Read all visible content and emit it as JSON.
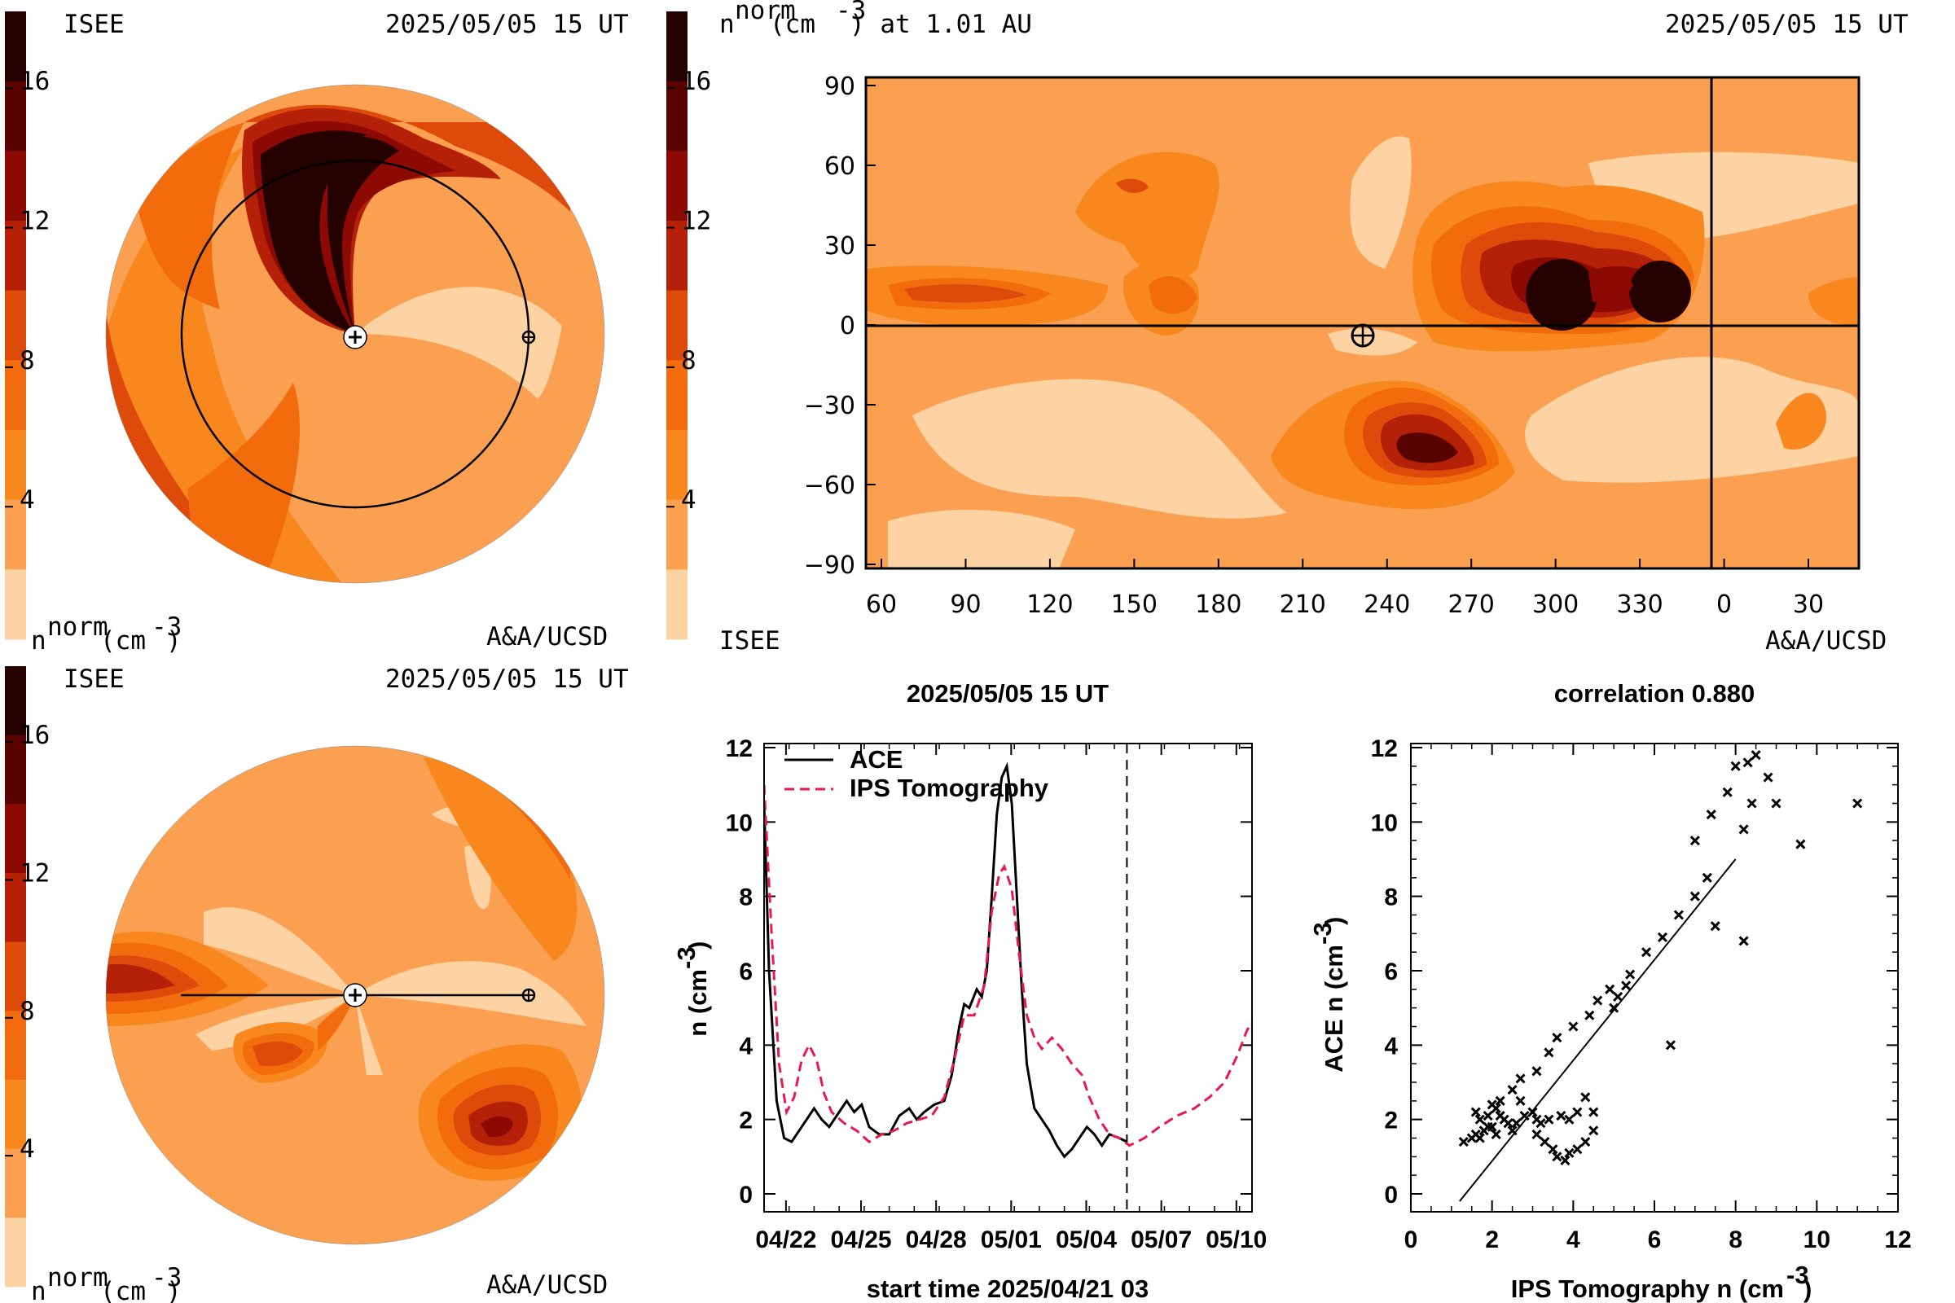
{
  "colors": {
    "c0": "#fdd3a3",
    "c1": "#fba050",
    "c2": "#f8871e",
    "c3": "#f26c0e",
    "c4": "#de4a0a",
    "c5": "#b42008",
    "c6": "#8d0a04",
    "c7": "#5a0402",
    "c8": "#250100",
    "ips": "#e8194f",
    "ace": "#000000"
  },
  "colorbar": {
    "ticks": [
      "16",
      "12",
      "8",
      "4"
    ],
    "title": "n",
    "title_sup": "norm",
    "title_unit": "(cm",
    "title_unit_sup": "-3",
    "title_unit_end": ")"
  },
  "top_left": {
    "source": "ISEE",
    "time": "2025/05/05 15 UT",
    "credit": "A&A/UCSD"
  },
  "top_right": {
    "title_prefix": "n",
    "title_sup": "norm",
    "title_mid": " (cm",
    "title_unit_sup": "-3",
    "title_end": ") at 1.01 AU",
    "time": "2025/05/05 15 UT",
    "source": "ISEE",
    "credit": "A&A/UCSD",
    "y_ticks": [
      "90",
      "60",
      "30",
      "0",
      "−30",
      "−60",
      "−90"
    ],
    "x_ticks": [
      "60",
      "90",
      "120",
      "150",
      "180",
      "210",
      "240",
      "270",
      "300",
      "330",
      "0",
      "30"
    ]
  },
  "bottom_left": {
    "source": "ISEE",
    "time": "2025/05/05 15 UT",
    "credit": "A&A/UCSD"
  },
  "chart_data": [
    {
      "type": "line",
      "title": "2025/05/05 15 UT",
      "xlabel": "start time 2025/04/21 03",
      "ylabel_main": "n (cm",
      "ylabel_sup": "-3",
      "ylabel_end": ")",
      "x_tick_labels": [
        "04/22",
        "04/25",
        "04/28",
        "05/01",
        "05/04",
        "05/07",
        "05/10"
      ],
      "x_tick_days": [
        0.875,
        3.875,
        6.875,
        9.875,
        12.875,
        15.875,
        18.875
      ],
      "xlim_days": [
        0,
        19.5
      ],
      "ylim": [
        0,
        12
      ],
      "y_ticks": [
        0,
        2,
        4,
        6,
        8,
        10,
        12
      ],
      "now_marker_day": 14.5,
      "series": [
        {
          "name": "ACE",
          "style": "solid",
          "points": [
            [
              0,
              10.5
            ],
            [
              0.2,
              6
            ],
            [
              0.5,
              2.5
            ],
            [
              0.8,
              1.5
            ],
            [
              1.1,
              1.4
            ],
            [
              1.5,
              1.8
            ],
            [
              2,
              2.3
            ],
            [
              2.3,
              2
            ],
            [
              2.6,
              1.8
            ],
            [
              3,
              2.2
            ],
            [
              3.3,
              2.5
            ],
            [
              3.6,
              2.2
            ],
            [
              3.9,
              2.4
            ],
            [
              4.2,
              1.8
            ],
            [
              4.6,
              1.6
            ],
            [
              5,
              1.6
            ],
            [
              5.4,
              2.1
            ],
            [
              5.8,
              2.3
            ],
            [
              6.1,
              2.0
            ],
            [
              6.4,
              2.2
            ],
            [
              6.8,
              2.4
            ],
            [
              7.2,
              2.5
            ],
            [
              7.5,
              3.2
            ],
            [
              7.8,
              4.5
            ],
            [
              8.0,
              5.1
            ],
            [
              8.2,
              5.0
            ],
            [
              8.5,
              5.5
            ],
            [
              8.7,
              5.3
            ],
            [
              8.9,
              6.0
            ],
            [
              9.1,
              8.0
            ],
            [
              9.3,
              10.2
            ],
            [
              9.5,
              11.2
            ],
            [
              9.7,
              11.5
            ],
            [
              9.9,
              10.5
            ],
            [
              10.1,
              8
            ],
            [
              10.3,
              5.5
            ],
            [
              10.5,
              3.5
            ],
            [
              10.8,
              2.3
            ],
            [
              11.1,
              2.0
            ],
            [
              11.4,
              1.7
            ],
            [
              11.7,
              1.3
            ],
            [
              12.0,
              1.0
            ],
            [
              12.3,
              1.2
            ],
            [
              12.6,
              1.5
            ],
            [
              12.9,
              1.8
            ],
            [
              13.2,
              1.6
            ],
            [
              13.5,
              1.3
            ],
            [
              13.8,
              1.6
            ],
            [
              14.2,
              1.5
            ],
            [
              14.5,
              1.4
            ]
          ]
        },
        {
          "name": "IPS Tomography",
          "style": "dashed",
          "points": [
            [
              0,
              11
            ],
            [
              0.3,
              7
            ],
            [
              0.6,
              3.5
            ],
            [
              0.9,
              2.2
            ],
            [
              1.2,
              2.6
            ],
            [
              1.5,
              3.6
            ],
            [
              1.8,
              4
            ],
            [
              2.1,
              3.6
            ],
            [
              2.4,
              2.7
            ],
            [
              2.7,
              2.2
            ],
            [
              3.2,
              1.9
            ],
            [
              3.7,
              1.7
            ],
            [
              4.2,
              1.4
            ],
            [
              4.7,
              1.6
            ],
            [
              5.2,
              1.7
            ],
            [
              5.7,
              1.9
            ],
            [
              6.2,
              2.0
            ],
            [
              6.7,
              2.1
            ],
            [
              7.2,
              2.6
            ],
            [
              7.6,
              3.6
            ],
            [
              8.0,
              4.8
            ],
            [
              8.4,
              4.8
            ],
            [
              8.8,
              5.6
            ],
            [
              9.1,
              7.6
            ],
            [
              9.4,
              8.6
            ],
            [
              9.6,
              8.8
            ],
            [
              9.9,
              8.2
            ],
            [
              10.2,
              6.4
            ],
            [
              10.5,
              4.8
            ],
            [
              10.8,
              4.2
            ],
            [
              11.1,
              3.9
            ],
            [
              11.5,
              4.2
            ],
            [
              11.9,
              3.9
            ],
            [
              12.3,
              3.5
            ],
            [
              12.7,
              3.2
            ],
            [
              13.0,
              2.6
            ],
            [
              13.4,
              2.0
            ],
            [
              13.8,
              1.6
            ],
            [
              14.2,
              1.5
            ],
            [
              14.6,
              1.3
            ],
            [
              15.2,
              1.5
            ],
            [
              15.8,
              1.8
            ],
            [
              16.5,
              2.1
            ],
            [
              17.2,
              2.3
            ],
            [
              17.8,
              2.6
            ],
            [
              18.4,
              3.0
            ],
            [
              18.9,
              3.7
            ],
            [
              19.3,
              4.4
            ],
            [
              19.5,
              4.6
            ]
          ]
        }
      ]
    },
    {
      "type": "scatter",
      "title": "correlation 0.880",
      "xlabel_main": "IPS Tomography n (cm",
      "xlabel_sup": "-3",
      "xlabel_end": ")",
      "ylabel_main": "ACE n (cm",
      "ylabel_sup": "-3",
      "ylabel_end": ")",
      "xlim": [
        0,
        12
      ],
      "ylim": [
        0,
        12
      ],
      "x_ticks": [
        0,
        2,
        4,
        6,
        8,
        10,
        12
      ],
      "y_ticks": [
        0,
        2,
        4,
        6,
        8,
        10,
        12
      ],
      "fit_line": [
        [
          1.2,
          -0.2
        ],
        [
          8.0,
          9.0
        ]
      ],
      "points": [
        [
          1.3,
          1.4
        ],
        [
          1.5,
          1.5
        ],
        [
          1.6,
          1.6
        ],
        [
          1.7,
          1.5
        ],
        [
          1.8,
          1.7
        ],
        [
          1.7,
          2.0
        ],
        [
          1.9,
          2.1
        ],
        [
          2.0,
          1.8
        ],
        [
          2.1,
          2.3
        ],
        [
          2.0,
          2.4
        ],
        [
          2.2,
          2.1
        ],
        [
          2.3,
          2.0
        ],
        [
          2.4,
          1.9
        ],
        [
          2.1,
          1.6
        ],
        [
          2.5,
          1.7
        ],
        [
          2.6,
          1.9
        ],
        [
          2.8,
          2.1
        ],
        [
          3.0,
          2.2
        ],
        [
          3.2,
          1.9
        ],
        [
          3.1,
          1.6
        ],
        [
          3.3,
          1.4
        ],
        [
          3.5,
          1.2
        ],
        [
          3.6,
          1.0
        ],
        [
          3.8,
          0.9
        ],
        [
          3.9,
          1.1
        ],
        [
          4.1,
          1.2
        ],
        [
          4.3,
          1.4
        ],
        [
          4.5,
          1.7
        ],
        [
          4.5,
          2.2
        ],
        [
          4.3,
          2.6
        ],
        [
          4.1,
          2.2
        ],
        [
          3.9,
          2.0
        ],
        [
          3.7,
          2.1
        ],
        [
          3.4,
          2.0
        ],
        [
          3.1,
          2.0
        ],
        [
          2.7,
          2.5
        ],
        [
          2.5,
          2.8
        ],
        [
          2.7,
          3.1
        ],
        [
          3.1,
          3.3
        ],
        [
          3.4,
          3.8
        ],
        [
          3.6,
          4.2
        ],
        [
          4.0,
          4.5
        ],
        [
          4.4,
          4.8
        ],
        [
          4.6,
          5.2
        ],
        [
          4.9,
          5.5
        ],
        [
          5.1,
          5.3
        ],
        [
          5.3,
          5.6
        ],
        [
          5.0,
          5.0
        ],
        [
          5.4,
          5.9
        ],
        [
          5.8,
          6.5
        ],
        [
          6.2,
          6.9
        ],
        [
          6.6,
          7.5
        ],
        [
          7.0,
          8.0
        ],
        [
          7.3,
          8.5
        ],
        [
          7.0,
          9.5
        ],
        [
          7.4,
          10.2
        ],
        [
          7.8,
          10.8
        ],
        [
          8.0,
          11.5
        ],
        [
          8.3,
          11.6
        ],
        [
          8.5,
          11.8
        ],
        [
          8.8,
          11.2
        ],
        [
          8.4,
          10.5
        ],
        [
          8.2,
          9.8
        ],
        [
          9.0,
          10.5
        ],
        [
          9.6,
          9.4
        ],
        [
          11.0,
          10.5
        ],
        [
          6.4,
          4.0
        ],
        [
          8.2,
          6.8
        ],
        [
          7.5,
          7.2
        ],
        [
          1.9,
          1.8
        ],
        [
          2.2,
          2.5
        ],
        [
          1.6,
          2.2
        ]
      ]
    }
  ]
}
